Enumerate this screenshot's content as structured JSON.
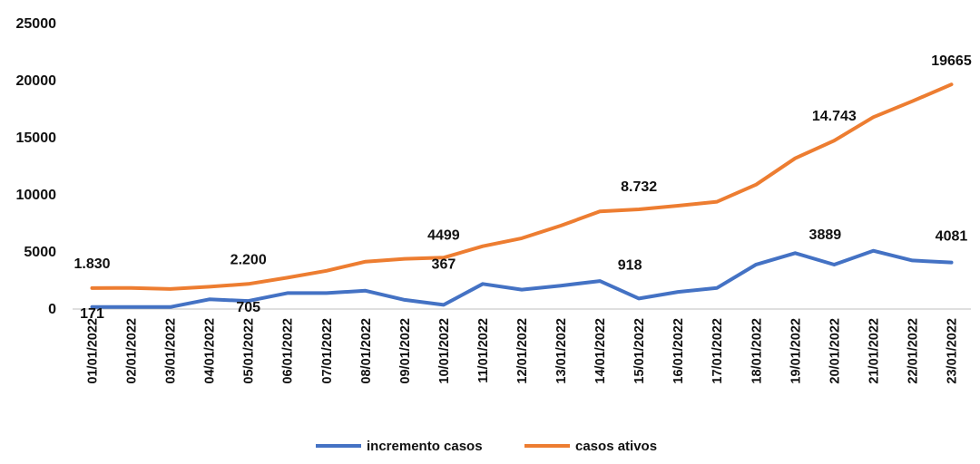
{
  "chart_data": {
    "type": "line",
    "title": "",
    "xlabel": "",
    "ylabel": "",
    "ylim": [
      0,
      25000
    ],
    "yticks": [
      "0",
      "5000",
      "10000",
      "15000",
      "20000",
      "25000"
    ],
    "grid": false,
    "legend_position": "bottom",
    "categories": [
      "01/01/2022",
      "02/01/2022",
      "03/01/2022",
      "04/01/2022",
      "05/01/2022",
      "06/01/2022",
      "07/01/2022",
      "08/01/2022",
      "09/01/2022",
      "10/01/2022",
      "11/01/2022",
      "12/01/2022",
      "13/01/2022",
      "14/01/2022",
      "15/01/2022",
      "16/01/2022",
      "17/01/2022",
      "18/01/2022",
      "19/01/2022",
      "20/01/2022",
      "21/01/2022",
      "22/01/2022",
      "23/01/2022"
    ],
    "series": [
      {
        "name": "incremento casos",
        "color": "#4472C4",
        "values": [
          171,
          171,
          171,
          850,
          705,
          1400,
          1400,
          1600,
          800,
          367,
          2200,
          1700,
          2050,
          2450,
          918,
          1500,
          1850,
          3900,
          4900,
          3889,
          5100,
          4250,
          4081
        ],
        "data_labels": [
          {
            "index": 0,
            "text": "171"
          },
          {
            "index": 4,
            "text": "705"
          },
          {
            "index": 9,
            "text": "367"
          },
          {
            "index": 14,
            "text": "918"
          },
          {
            "index": 19,
            "text": "3889"
          },
          {
            "index": 22,
            "text": "4081"
          }
        ]
      },
      {
        "name": "casos ativos",
        "color": "#ED7D31",
        "values": [
          1830,
          1850,
          1750,
          1950,
          2200,
          2750,
          3350,
          4150,
          4400,
          4499,
          5500,
          6200,
          7300,
          8550,
          8732,
          9050,
          9400,
          10900,
          13200,
          14743,
          16800,
          18200,
          19665
        ],
        "data_labels": [
          {
            "index": 0,
            "text": "1.830"
          },
          {
            "index": 4,
            "text": "2.200"
          },
          {
            "index": 9,
            "text": "4499"
          },
          {
            "index": 14,
            "text": "8.732"
          },
          {
            "index": 19,
            "text": "14.743"
          },
          {
            "index": 22,
            "text": "19665"
          }
        ]
      }
    ]
  }
}
